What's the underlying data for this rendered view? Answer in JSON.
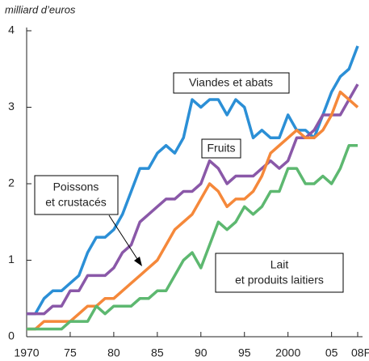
{
  "chart_data": {
    "type": "line",
    "y_axis_label": "milliard d’euros",
    "x": [
      1970,
      1971,
      1972,
      1973,
      1974,
      1975,
      1976,
      1977,
      1978,
      1979,
      1980,
      1981,
      1982,
      1983,
      1984,
      1985,
      1986,
      1987,
      1988,
      1989,
      1990,
      1991,
      1992,
      1993,
      1994,
      1995,
      1996,
      1997,
      1998,
      1999,
      2000,
      2001,
      2002,
      2003,
      2004,
      2005,
      2006,
      2007,
      2008
    ],
    "series": [
      {
        "name": "Viandes et abats",
        "color": "#2b8fd6",
        "values": [
          0.3,
          0.3,
          0.5,
          0.6,
          0.6,
          0.7,
          0.8,
          1.1,
          1.3,
          1.3,
          1.4,
          1.6,
          1.9,
          2.2,
          2.2,
          2.4,
          2.5,
          2.4,
          2.6,
          3.1,
          3.0,
          3.1,
          3.1,
          2.9,
          3.1,
          3.0,
          2.6,
          2.7,
          2.6,
          2.6,
          2.9,
          2.7,
          2.7,
          2.6,
          2.9,
          3.2,
          3.4,
          3.5,
          3.8
        ]
      },
      {
        "name": "Fruits",
        "color": "#8a58a8",
        "values": [
          0.3,
          0.3,
          0.3,
          0.4,
          0.4,
          0.6,
          0.6,
          0.8,
          0.8,
          0.8,
          0.9,
          1.1,
          1.2,
          1.5,
          1.6,
          1.7,
          1.8,
          1.8,
          1.9,
          1.9,
          2.0,
          2.3,
          2.2,
          2.0,
          2.1,
          2.1,
          2.1,
          2.2,
          2.3,
          2.2,
          2.3,
          2.6,
          2.6,
          2.7,
          2.9,
          2.9,
          2.9,
          3.1,
          3.3
        ]
      },
      {
        "name": "Poissons\net crustacés",
        "color": "#f5883a",
        "values": [
          0.1,
          0.1,
          0.2,
          0.2,
          0.2,
          0.2,
          0.3,
          0.4,
          0.4,
          0.5,
          0.5,
          0.6,
          0.7,
          0.8,
          0.9,
          1.0,
          1.2,
          1.4,
          1.5,
          1.6,
          1.8,
          2.0,
          1.9,
          1.7,
          1.8,
          1.8,
          1.9,
          2.1,
          2.4,
          2.5,
          2.6,
          2.7,
          2.6,
          2.6,
          2.7,
          2.9,
          3.2,
          3.1,
          3.0
        ]
      },
      {
        "name": "Lait\net produits laitiers",
        "color": "#5db870",
        "values": [
          0.1,
          0.1,
          0.1,
          0.1,
          0.1,
          0.2,
          0.2,
          0.2,
          0.4,
          0.3,
          0.4,
          0.4,
          0.4,
          0.5,
          0.5,
          0.6,
          0.6,
          0.8,
          1.0,
          1.1,
          0.9,
          1.2,
          1.5,
          1.4,
          1.5,
          1.7,
          1.6,
          1.7,
          1.9,
          1.9,
          2.2,
          2.2,
          2.0,
          2.0,
          2.1,
          2.0,
          2.2,
          2.5,
          2.5
        ]
      }
    ],
    "xlim": [
      1970,
      2008
    ],
    "xticks": [
      {
        "value": 1970,
        "label": "1970"
      },
      {
        "value": 1975,
        "label": "75"
      },
      {
        "value": 1980,
        "label": "80"
      },
      {
        "value": 1985,
        "label": "85"
      },
      {
        "value": 1990,
        "label": "90"
      },
      {
        "value": 1995,
        "label": "95"
      },
      {
        "value": 2000,
        "label": "2000"
      },
      {
        "value": 2005,
        "label": "05"
      },
      {
        "value": 2008,
        "label": "08P"
      }
    ],
    "ylim": [
      0,
      4
    ],
    "yticks": [
      0,
      1,
      2,
      3,
      4
    ],
    "grid": false
  }
}
